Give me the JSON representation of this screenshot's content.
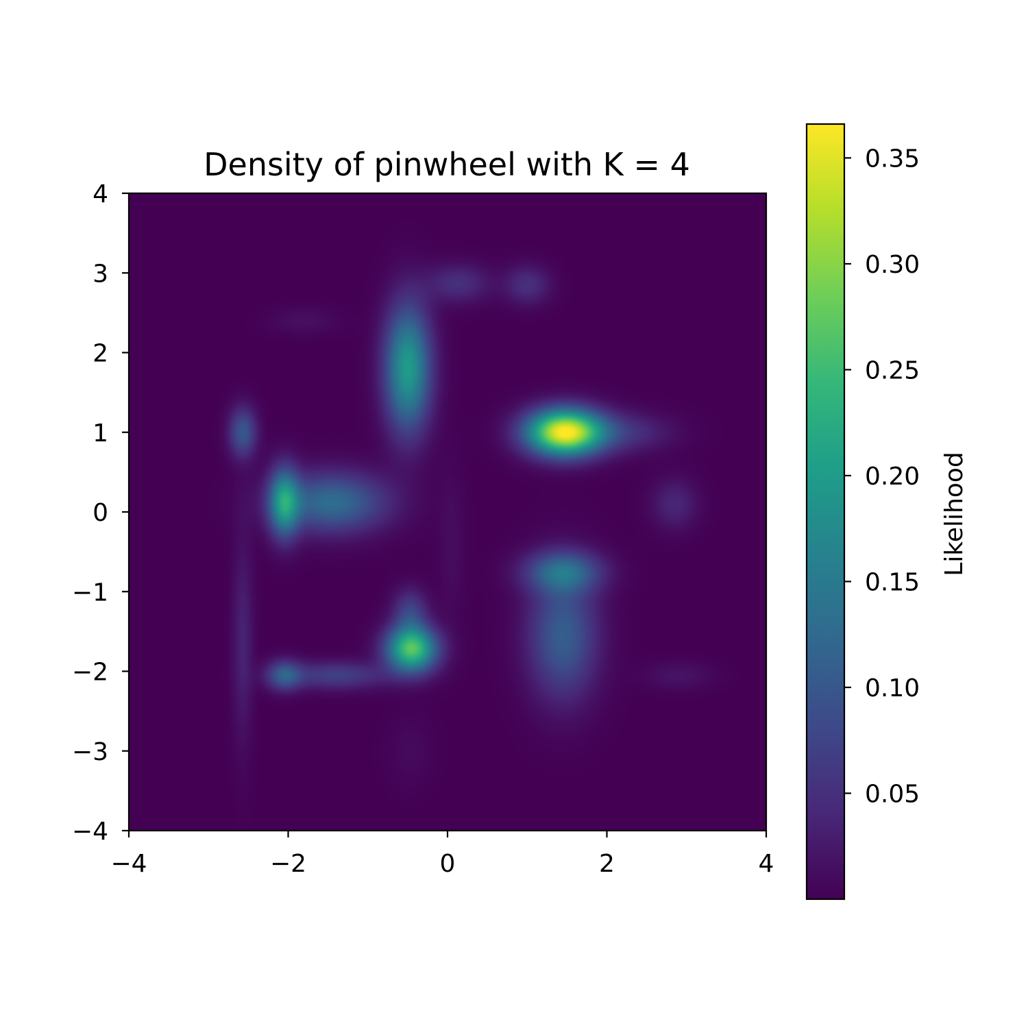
{
  "chart_data": {
    "type": "heatmap",
    "title": "Density of pinwheel with K = 4",
    "xlabel": "",
    "ylabel": "",
    "xlim": [
      -4,
      4
    ],
    "ylim": [
      -4,
      4
    ],
    "xticks": [
      -4,
      -2,
      0,
      2,
      4
    ],
    "yticks": [
      -4,
      -3,
      -2,
      -1,
      0,
      1,
      2,
      3,
      4
    ],
    "xtick_labels": [
      "−4",
      "−2",
      "0",
      "2",
      "4"
    ],
    "ytick_labels": [
      "−4",
      "−3",
      "−2",
      "−1",
      "0",
      "1",
      "2",
      "3",
      "4"
    ],
    "grid": false,
    "colormap": "viridis",
    "colorbar": {
      "label": "Likelihood",
      "range": [
        0.0,
        0.366
      ],
      "ticks": [
        0.05,
        0.1,
        0.15,
        0.2,
        0.25,
        0.3,
        0.35
      ],
      "tick_labels": [
        "0.05",
        "0.10",
        "0.15",
        "0.20",
        "0.25",
        "0.30",
        "0.35"
      ]
    },
    "density_peaks": [
      {
        "x": 1.47,
        "y": 1.0,
        "sx": 0.33,
        "sy": 0.2,
        "value": 0.366
      },
      {
        "x": 2.2,
        "y": 1.0,
        "sx": 0.42,
        "sy": 0.17,
        "value": 0.05
      },
      {
        "x": -0.5,
        "y": 1.8,
        "sx": 0.2,
        "sy": 0.55,
        "value": 0.2
      },
      {
        "x": -0.45,
        "y": -1.72,
        "sx": 0.22,
        "sy": 0.2,
        "value": 0.27
      },
      {
        "x": -0.47,
        "y": -1.25,
        "sx": 0.15,
        "sy": 0.2,
        "value": 0.07
      },
      {
        "x": -2.05,
        "y": 0.12,
        "sx": 0.13,
        "sy": 0.3,
        "value": 0.18
      },
      {
        "x": -1.45,
        "y": 0.12,
        "sx": 0.48,
        "sy": 0.26,
        "value": 0.13
      },
      {
        "x": -2.05,
        "y": -2.05,
        "sx": 0.15,
        "sy": 0.13,
        "value": 0.1
      },
      {
        "x": -1.4,
        "y": -2.05,
        "sx": 0.45,
        "sy": 0.12,
        "value": 0.07
      },
      {
        "x": 1.45,
        "y": -0.75,
        "sx": 0.33,
        "sy": 0.18,
        "value": 0.12
      },
      {
        "x": 1.45,
        "y": -1.55,
        "sx": 0.3,
        "sy": 0.55,
        "value": 0.11
      },
      {
        "x": -2.57,
        "y": 1.0,
        "sx": 0.12,
        "sy": 0.22,
        "value": 0.1
      },
      {
        "x": -2.57,
        "y": -1.6,
        "sx": 0.09,
        "sy": 0.9,
        "value": 0.035
      },
      {
        "x": 0.13,
        "y": 2.87,
        "sx": 0.28,
        "sy": 0.17,
        "value": 0.05
      },
      {
        "x": 1.0,
        "y": 2.85,
        "sx": 0.2,
        "sy": 0.17,
        "value": 0.05
      },
      {
        "x": 2.85,
        "y": 0.1,
        "sx": 0.2,
        "sy": 0.22,
        "value": 0.04
      },
      {
        "x": 2.9,
        "y": -2.05,
        "sx": 0.3,
        "sy": 0.12,
        "value": 0.02
      },
      {
        "x": -1.8,
        "y": 2.4,
        "sx": 0.3,
        "sy": 0.12,
        "value": 0.015
      },
      {
        "x": 0.05,
        "y": -0.4,
        "sx": 0.12,
        "sy": 0.7,
        "value": 0.012
      },
      {
        "x": -0.47,
        "y": -3.0,
        "sx": 0.2,
        "sy": 0.3,
        "value": 0.01
      }
    ]
  }
}
